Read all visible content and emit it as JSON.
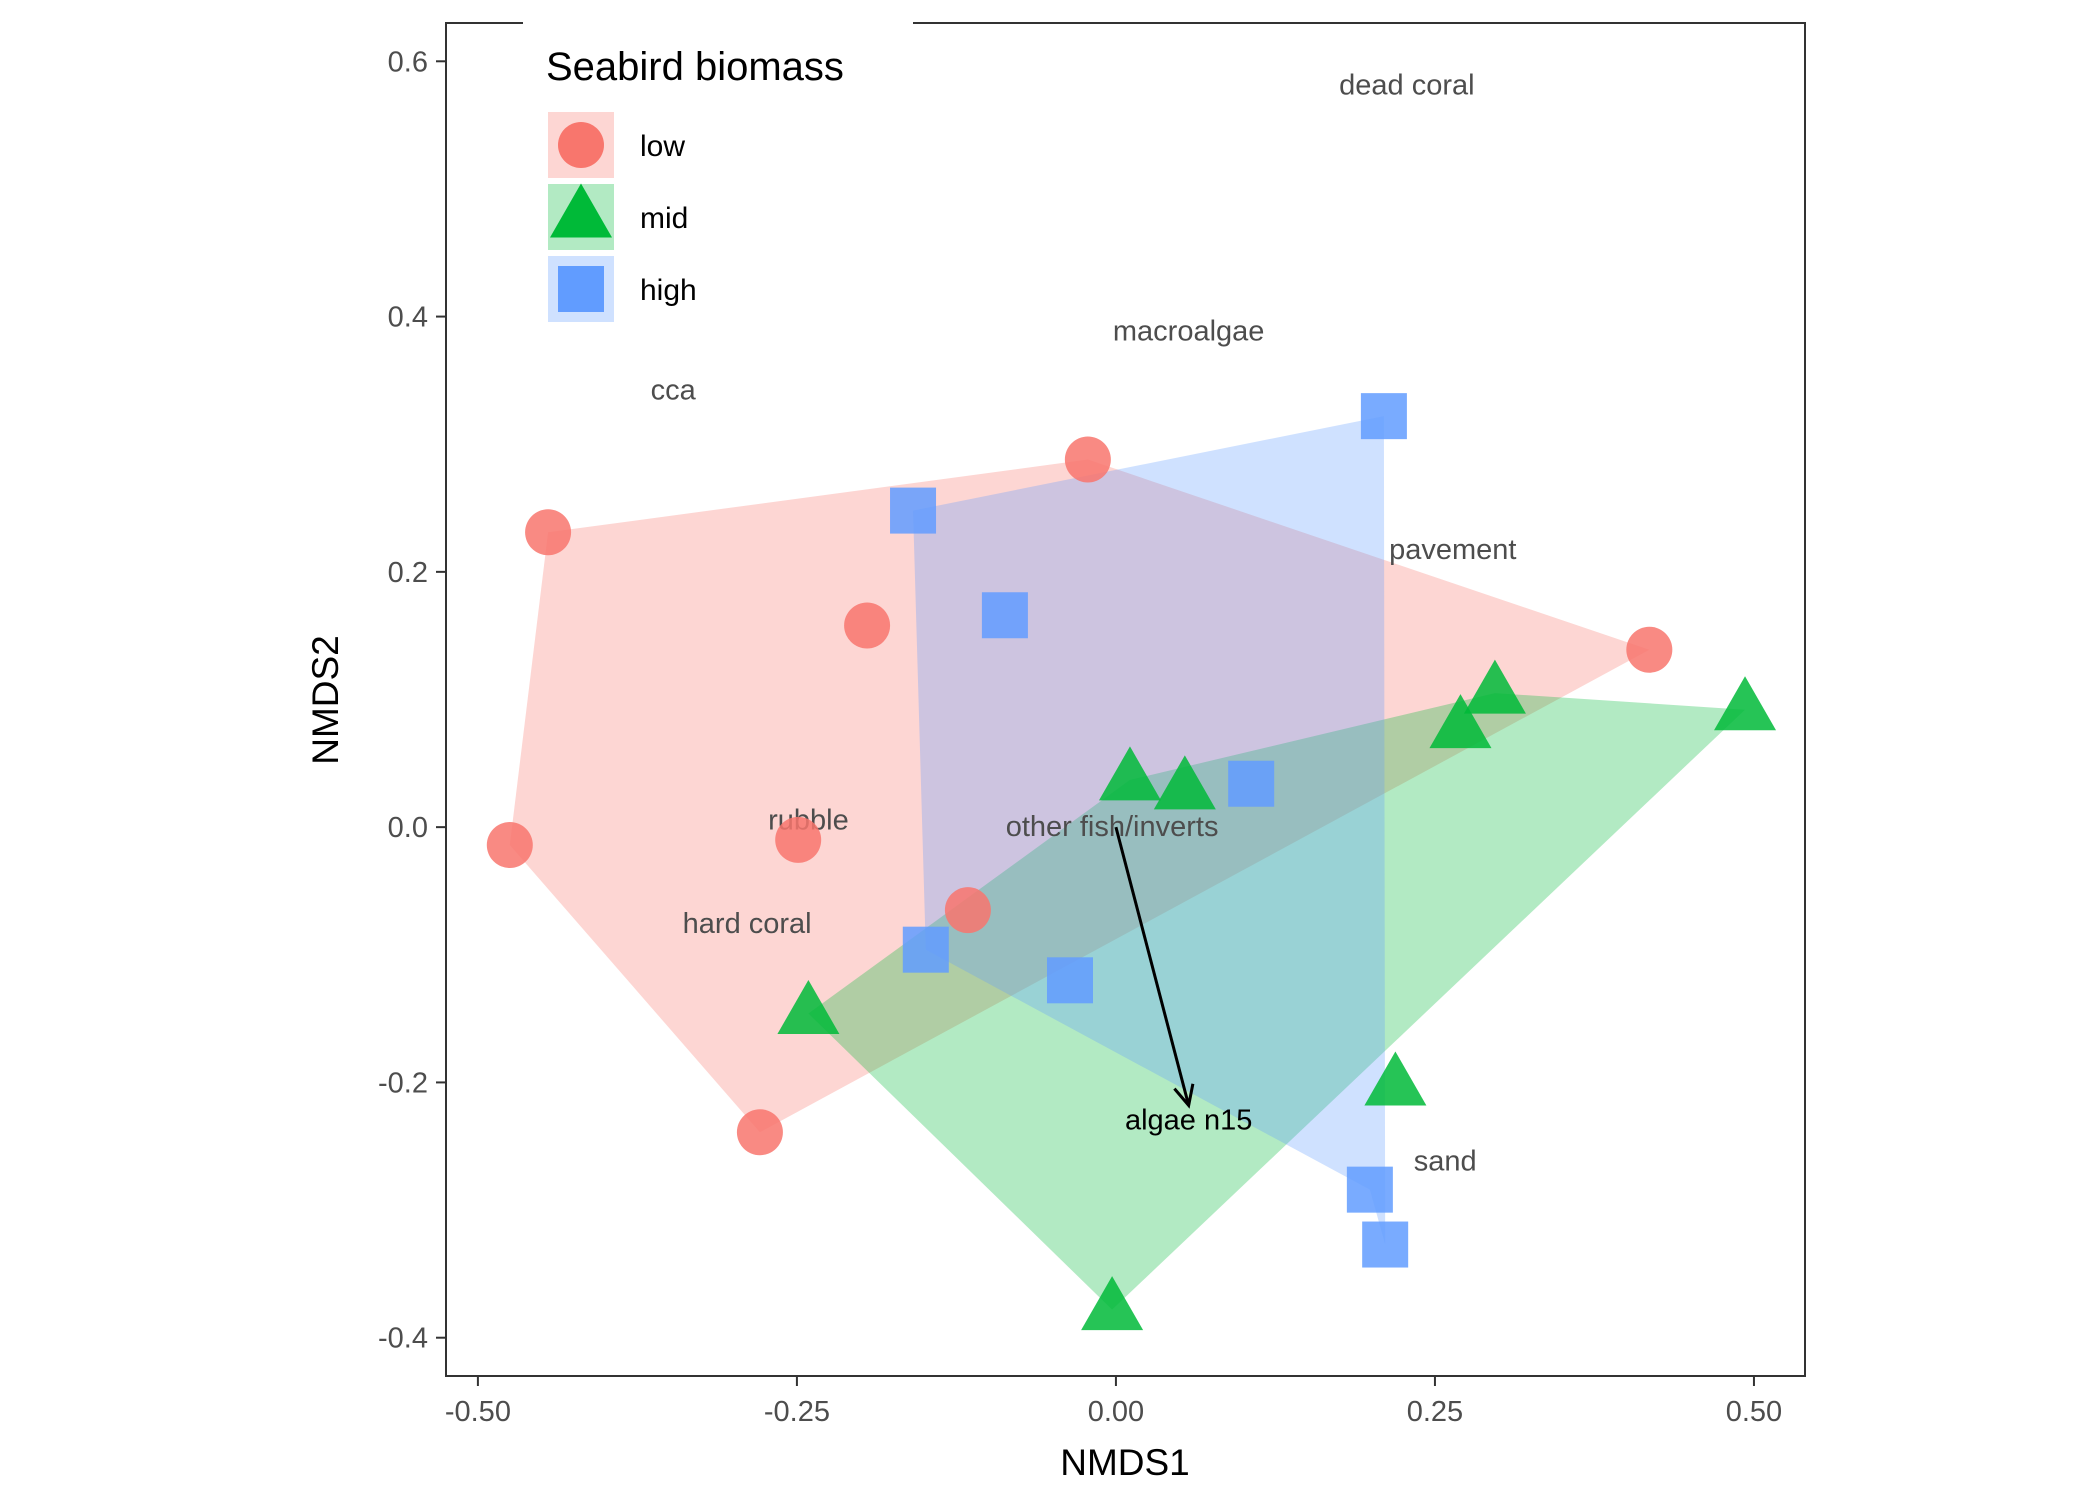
{
  "chart_data": {
    "type": "scatter",
    "xlabel": "NMDS1",
    "ylabel": "NMDS2",
    "xlim": [
      -0.525,
      0.54
    ],
    "ylim": [
      -0.43,
      0.63
    ],
    "x_ticks": [
      -0.5,
      -0.25,
      0.0,
      0.25,
      0.5
    ],
    "x_tick_labels": [
      "-0.50",
      "-0.25",
      "0.00",
      "0.25",
      "0.50"
    ],
    "y_ticks": [
      -0.4,
      -0.2,
      0.0,
      0.2,
      0.4,
      0.6
    ],
    "y_tick_labels": [
      "-0.4",
      "-0.2",
      "0.0",
      "0.2",
      "0.4",
      "0.6"
    ],
    "grid": false,
    "legend": {
      "title": "Seabird biomass",
      "placement": "top-left",
      "entries": [
        {
          "label": "low",
          "shape": "circle",
          "color": "#F8766D"
        },
        {
          "label": "mid",
          "shape": "triangle",
          "color": "#00BA38"
        },
        {
          "label": "high",
          "shape": "square",
          "color": "#619CFF"
        }
      ]
    },
    "series": [
      {
        "name": "low",
        "shape": "circle",
        "color": "#F8766D",
        "points": [
          {
            "x": -0.445,
            "y": 0.231
          },
          {
            "x": -0.022,
            "y": 0.288
          },
          {
            "x": -0.195,
            "y": 0.158
          },
          {
            "x": 0.418,
            "y": 0.139
          },
          {
            "x": -0.475,
            "y": -0.014
          },
          {
            "x": -0.249,
            "y": -0.01
          },
          {
            "x": -0.116,
            "y": -0.065
          },
          {
            "x": -0.279,
            "y": -0.239
          }
        ],
        "hull": [
          [
            -0.475,
            -0.014
          ],
          [
            -0.445,
            0.231
          ],
          [
            -0.022,
            0.288
          ],
          [
            0.418,
            0.139
          ],
          [
            -0.279,
            -0.239
          ]
        ]
      },
      {
        "name": "mid",
        "shape": "triangle",
        "color": "#00BA38",
        "points": [
          {
            "x": 0.297,
            "y": 0.105
          },
          {
            "x": 0.27,
            "y": 0.078
          },
          {
            "x": 0.493,
            "y": 0.092
          },
          {
            "x": 0.011,
            "y": 0.037
          },
          {
            "x": 0.054,
            "y": 0.03
          },
          {
            "x": -0.241,
            "y": -0.146
          },
          {
            "x": 0.219,
            "y": -0.202
          },
          {
            "x": -0.003,
            "y": -0.378
          }
        ],
        "hull": [
          [
            -0.241,
            -0.146
          ],
          [
            0.011,
            0.037
          ],
          [
            0.297,
            0.105
          ],
          [
            0.493,
            0.092
          ],
          [
            -0.003,
            -0.378
          ]
        ]
      },
      {
        "name": "high",
        "shape": "square",
        "color": "#619CFF",
        "points": [
          {
            "x": 0.21,
            "y": 0.322
          },
          {
            "x": -0.159,
            "y": 0.248
          },
          {
            "x": -0.087,
            "y": 0.166
          },
          {
            "x": 0.106,
            "y": 0.034
          },
          {
            "x": -0.149,
            "y": -0.096
          },
          {
            "x": -0.036,
            "y": -0.12
          },
          {
            "x": 0.199,
            "y": -0.284
          },
          {
            "x": 0.211,
            "y": -0.327
          }
        ],
        "hull": [
          [
            -0.159,
            0.248
          ],
          [
            0.21,
            0.322
          ],
          [
            0.211,
            -0.327
          ],
          [
            0.199,
            -0.284
          ],
          [
            -0.149,
            -0.096
          ]
        ]
      }
    ],
    "species_labels": [
      {
        "text": "dead coral",
        "x": 0.228,
        "y": 0.582
      },
      {
        "text": "macroalgae",
        "x": 0.057,
        "y": 0.389
      },
      {
        "text": "cca",
        "x": -0.347,
        "y": 0.343
      },
      {
        "text": "pavement",
        "x": 0.264,
        "y": 0.218
      },
      {
        "text": "rubble",
        "x": -0.241,
        "y": 0.006
      },
      {
        "text": "other fish/inverts",
        "x": -0.003,
        "y": 0.001
      },
      {
        "text": "hard coral",
        "x": -0.289,
        "y": -0.075
      },
      {
        "text": "sand",
        "x": 0.258,
        "y": -0.261
      }
    ],
    "vectors": [
      {
        "label": "algae n15",
        "x0": 0.0,
        "y0": 0.0,
        "x1": 0.057,
        "y1": -0.218,
        "label_x": 0.057,
        "label_y": -0.229
      }
    ]
  }
}
